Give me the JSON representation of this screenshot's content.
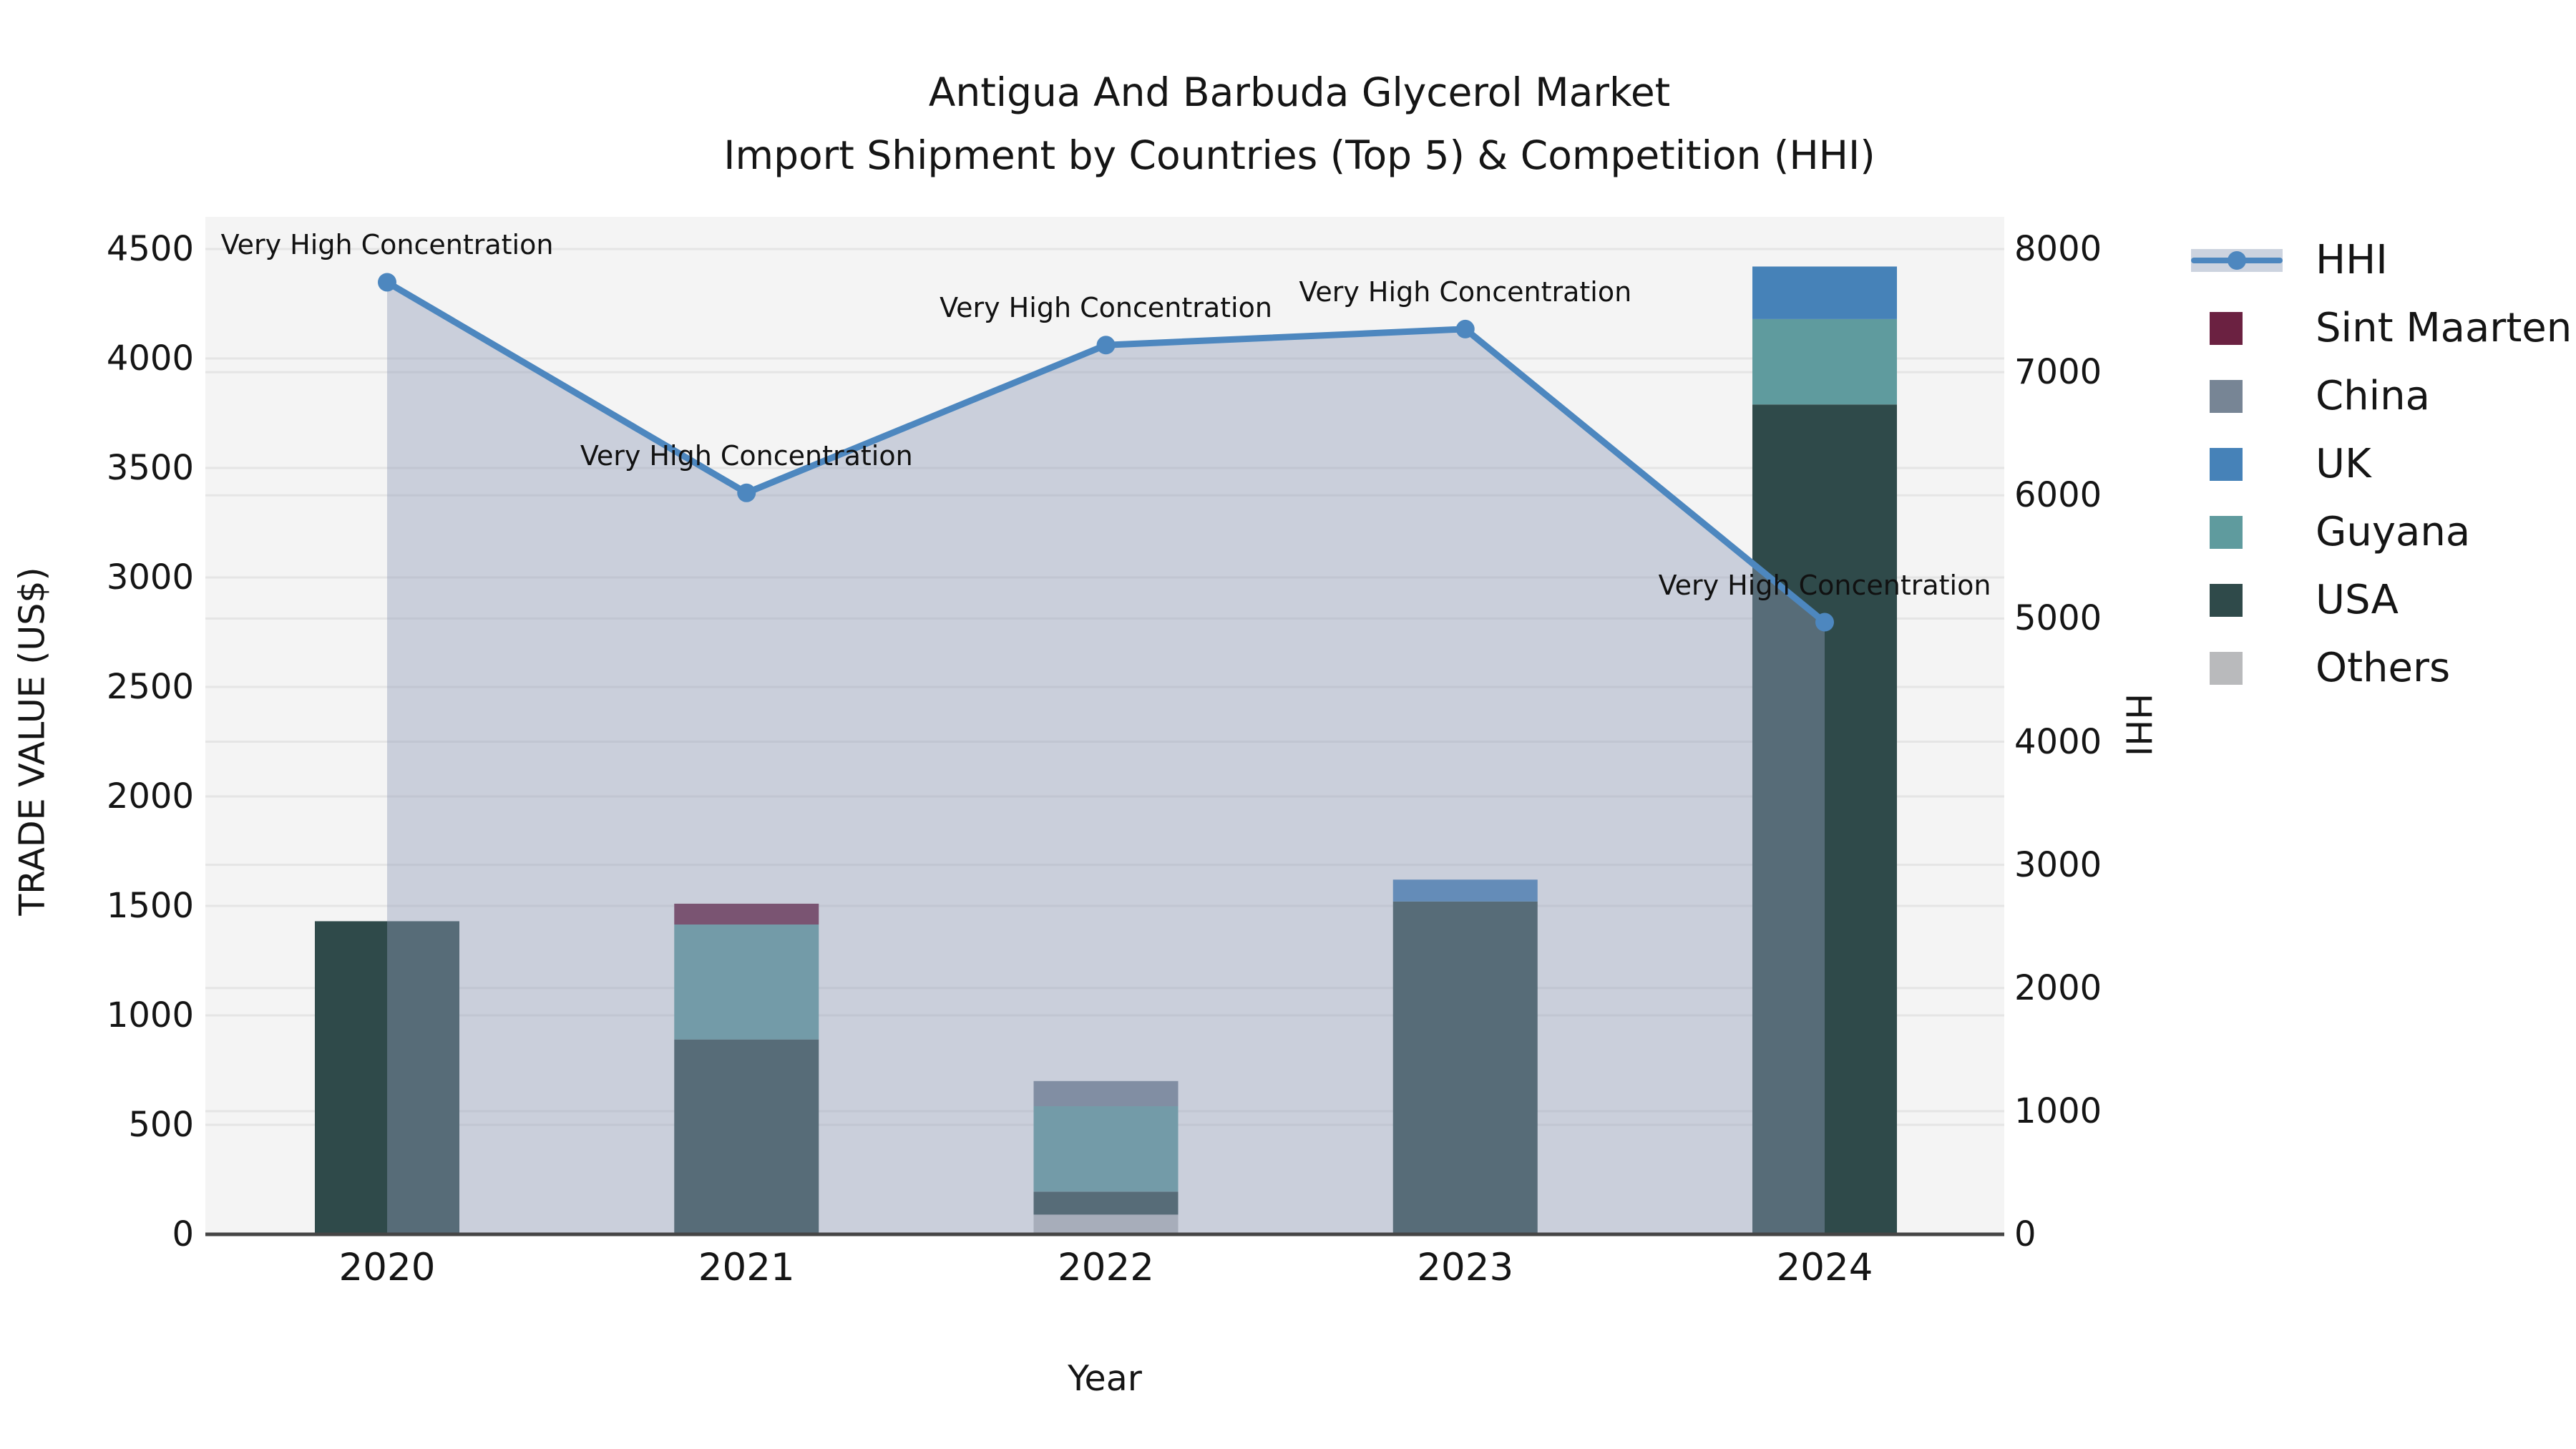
{
  "title": {
    "line1": "Antigua And Barbuda Glycerol Market",
    "line2": "Import Shipment by Countries (Top 5) & Competition (HHI)"
  },
  "chart_data": {
    "type": "combo: stacked bar (left axis) + line with area fill (right axis)",
    "categories": [
      "2020",
      "2021",
      "2022",
      "2023",
      "2024"
    ],
    "xlabel": "Year",
    "left_axis": {
      "label": "TRADE VALUE (US$)",
      "ticks": [
        0,
        500,
        1000,
        1500,
        2000,
        2500,
        3000,
        3500,
        4000,
        4500
      ],
      "range": [
        0,
        4650
      ]
    },
    "right_axis": {
      "label": "HHI",
      "ticks": [
        0,
        1000,
        2000,
        3000,
        4000,
        5000,
        6000,
        7000,
        8000
      ],
      "range": [
        0,
        8260
      ]
    },
    "bar_series": [
      {
        "name": "Others",
        "color": "#b9babc",
        "values": [
          0,
          0,
          90,
          0,
          0
        ]
      },
      {
        "name": "USA",
        "color": "#2f4a4a",
        "values": [
          1430,
          890,
          105,
          1520,
          3790
        ]
      },
      {
        "name": "Guyana",
        "color": "#5f9b9e",
        "values": [
          0,
          525,
          390,
          0,
          390
        ]
      },
      {
        "name": "UK",
        "color": "#4682b8",
        "values": [
          0,
          0,
          0,
          100,
          240
        ]
      },
      {
        "name": "China",
        "color": "#778595",
        "values": [
          0,
          0,
          115,
          0,
          0
        ]
      },
      {
        "name": "Sint Maarten",
        "color": "#6b2141",
        "values": [
          0,
          95,
          0,
          0,
          0
        ]
      }
    ],
    "bar_stack_order": "bottom to top",
    "bar_totals": [
      1430,
      1510,
      700,
      1620,
      4420
    ],
    "line_series": {
      "name": "HHI",
      "color": "#4d87bf",
      "area_fill": "rgba(142,155,183,0.42)",
      "values": [
        7730,
        6020,
        7220,
        7350,
        4970
      ]
    },
    "point_annotations": [
      "Very High Concentration",
      "Very High Concentration",
      "Very High Concentration",
      "Very High Concentration",
      "Very High Concentration"
    ],
    "grid": true,
    "plot_bg": "#f4f4f4",
    "grid_color": "#e5e5e5",
    "spine_color": "#454545"
  },
  "legend": {
    "items": [
      {
        "label": "HHI",
        "type": "line",
        "color": "#4d87bf",
        "band": "#ccd3df"
      },
      {
        "label": "Sint Maarten",
        "type": "square",
        "color": "#6b2141"
      },
      {
        "label": "China",
        "type": "square",
        "color": "#778595"
      },
      {
        "label": "UK",
        "type": "square",
        "color": "#4682b8"
      },
      {
        "label": "Guyana",
        "type": "square",
        "color": "#5f9b9e"
      },
      {
        "label": "USA",
        "type": "square",
        "color": "#2f4a4a"
      },
      {
        "label": "Others",
        "type": "square",
        "color": "#b9babc"
      }
    ]
  }
}
